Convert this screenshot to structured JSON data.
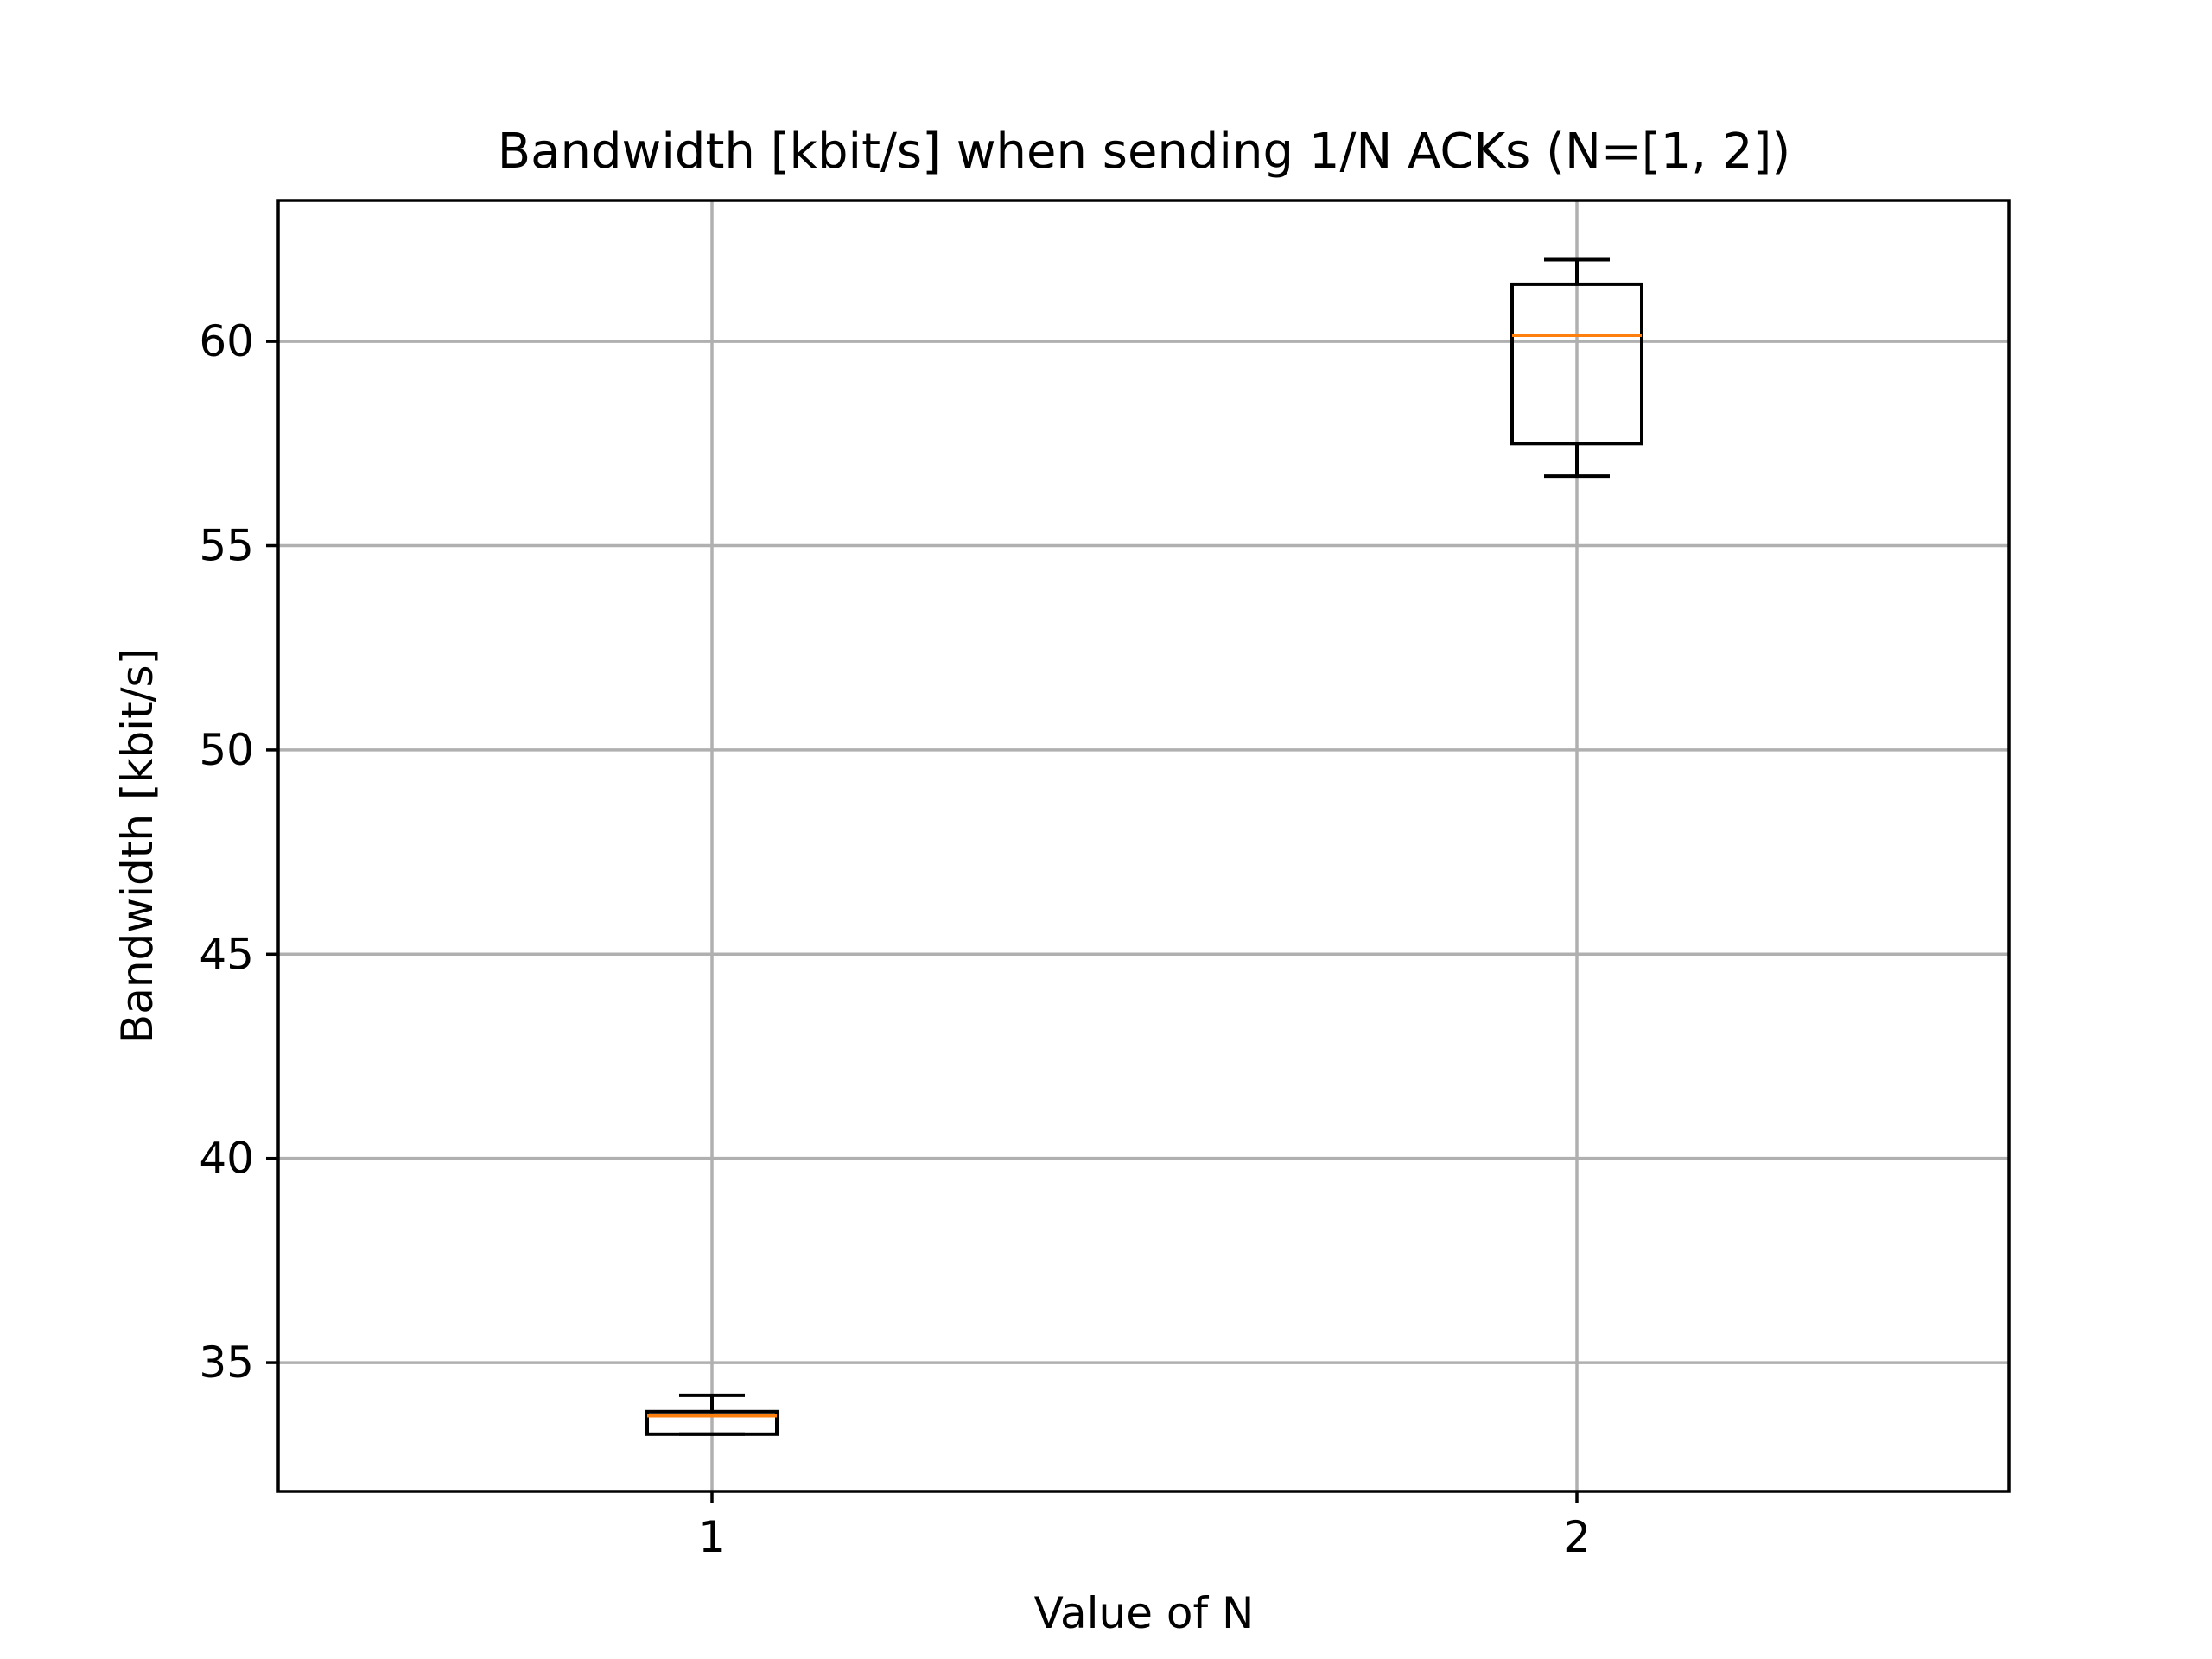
{
  "chart_data": {
    "type": "box",
    "title": "Bandwidth [kbit/s] when sending 1/N ACKs (N=[1, 2])",
    "xlabel": "Value of N",
    "ylabel": "Bandwidth [kbit/s]",
    "categories": [
      "1",
      "2"
    ],
    "ylim": [
      31.85,
      63.45
    ],
    "yticks": [
      35,
      40,
      45,
      50,
      55,
      60
    ],
    "grid": true,
    "colors": {
      "box": "#000000",
      "median": "#ff7f0e",
      "grid": "#b0b0b0"
    },
    "boxes": [
      {
        "category": "1",
        "whisker_low": 33.25,
        "q1": 33.25,
        "median": 33.7,
        "q3": 33.8,
        "whisker_high": 34.2
      },
      {
        "category": "2",
        "whisker_low": 56.7,
        "q1": 57.5,
        "median": 60.15,
        "q3": 61.4,
        "whisker_high": 62.0
      }
    ]
  }
}
